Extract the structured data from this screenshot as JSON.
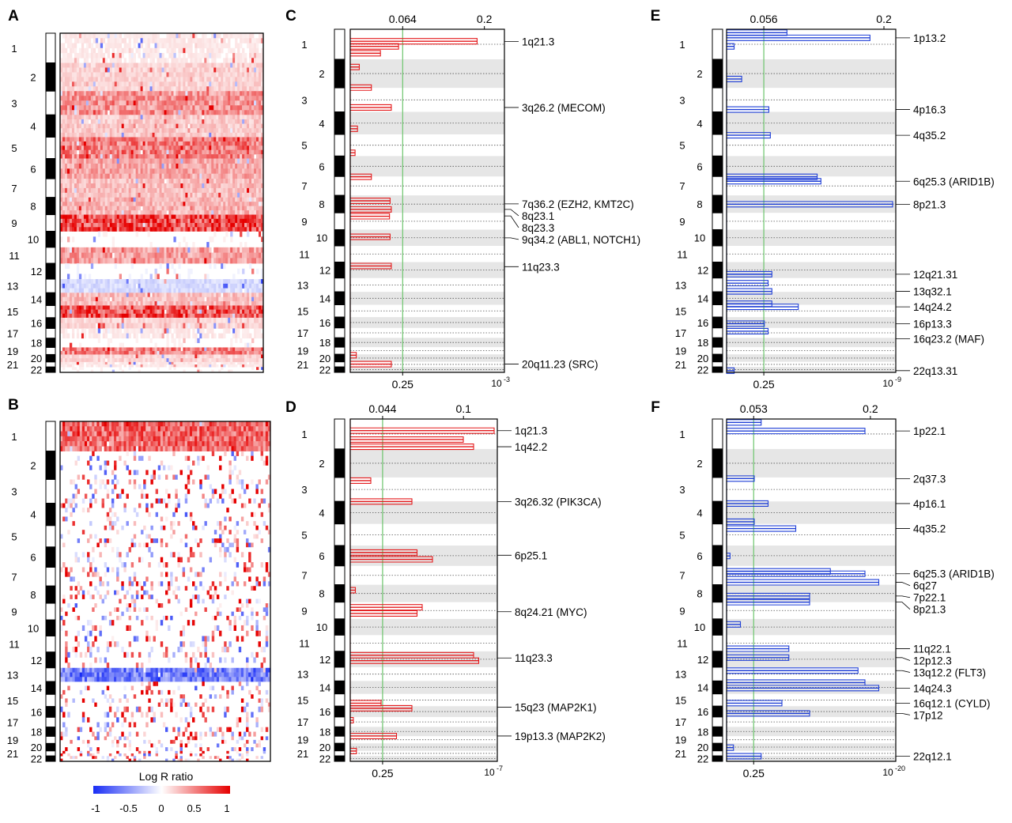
{
  "figure": {
    "chromosomes": [
      "1",
      "2",
      "3",
      "4",
      "5",
      "6",
      "7",
      "8",
      "9",
      "10",
      "11",
      "12",
      "13",
      "14",
      "15",
      "16",
      "17",
      "18",
      "19",
      "20",
      "21",
      "22"
    ],
    "colors": {
      "gain": "#e41a1c",
      "loss": "#1f3fd6",
      "threshold": "#6cc46c",
      "band": "#e6e6e6",
      "ink": "#000000"
    }
  },
  "chart_data": [
    {
      "panel": "A",
      "type": "heatmap",
      "description_label": "A",
      "rows": "chromosome position",
      "columns": "samples",
      "color_scale": {
        "min": -1,
        "max": 1
      },
      "bands": [
        {
          "chrom": "1",
          "level": 0.1
        },
        {
          "chrom": "2",
          "level": 0.2
        },
        {
          "chrom": "3",
          "level": 0.5
        },
        {
          "chrom": "4",
          "level": 0.25
        },
        {
          "chrom": "5",
          "level": 0.6
        },
        {
          "chrom": "6",
          "level": 0.4
        },
        {
          "chrom": "7",
          "level": 0.3
        },
        {
          "chrom": "8",
          "level": 0.35
        },
        {
          "chrom": "9",
          "level": 0.85
        },
        {
          "chrom": "10",
          "level": 0.05
        },
        {
          "chrom": "11",
          "level": 0.45
        },
        {
          "chrom": "12",
          "level": -0.05
        },
        {
          "chrom": "13",
          "level": -0.2
        },
        {
          "chrom": "14",
          "level": 0.3
        },
        {
          "chrom": "15",
          "level": 0.8
        },
        {
          "chrom": "16",
          "level": 0.2
        },
        {
          "chrom": "17",
          "level": 0.1
        },
        {
          "chrom": "18",
          "level": 0.05
        },
        {
          "chrom": "19",
          "level": 0.6
        },
        {
          "chrom": "20",
          "level": 0.2
        },
        {
          "chrom": "21",
          "level": 0.1
        },
        {
          "chrom": "22",
          "level": 0.05
        }
      ]
    },
    {
      "panel": "B",
      "type": "heatmap",
      "description_label": "B",
      "rows": "chromosome position",
      "columns": "samples",
      "color_scale": {
        "min": -1,
        "max": 1
      },
      "legend_title": "Log R ratio",
      "legend_ticks": [
        "-1",
        "-0.5",
        "0",
        "0.5",
        "1"
      ],
      "bands": [
        {
          "chrom": "1",
          "level": 0.7
        },
        {
          "chrom": "2",
          "level": 0.05
        },
        {
          "chrom": "3",
          "level": 0.05
        },
        {
          "chrom": "4",
          "level": 0.05
        },
        {
          "chrom": "5",
          "level": 0.05
        },
        {
          "chrom": "6",
          "level": 0.1
        },
        {
          "chrom": "7",
          "level": 0.05
        },
        {
          "chrom": "8",
          "level": 0.15
        },
        {
          "chrom": "9",
          "level": 0.05
        },
        {
          "chrom": "10",
          "level": 0.05
        },
        {
          "chrom": "11",
          "level": 0.1
        },
        {
          "chrom": "12",
          "level": 0.0
        },
        {
          "chrom": "13",
          "level": -0.7
        },
        {
          "chrom": "14",
          "level": 0.05
        },
        {
          "chrom": "15",
          "level": 0.15
        },
        {
          "chrom": "16",
          "level": 0.05
        },
        {
          "chrom": "17",
          "level": 0.05
        },
        {
          "chrom": "18",
          "level": 0.05
        },
        {
          "chrom": "19",
          "level": 0.05
        },
        {
          "chrom": "20",
          "level": 0.05
        },
        {
          "chrom": "21",
          "level": 0.05
        },
        {
          "chrom": "22",
          "level": 0.05
        }
      ]
    },
    {
      "panel": "C",
      "type": "line",
      "description_label": "C",
      "color": "gain",
      "top_ticks": [
        "0.064",
        "0.2"
      ],
      "bottom_ticks": [
        "0.25"
      ],
      "bottom_exponent": {
        "base": "10",
        "exp": "-3"
      },
      "threshold": 0.064,
      "xmax": 0.25,
      "annotations": [
        {
          "label": "1q21.3",
          "pos": 0.0357
        },
        {
          "label": "3q26.2 (MECOM)",
          "pos": 0.228
        },
        {
          "label": "7q36.2 (EZH2, KMT2C)",
          "pos": 0.509
        },
        {
          "label": "8q23.1",
          "pos": 0.525
        },
        {
          "label": "8q23.3",
          "pos": 0.544
        },
        {
          "label": "9q34.2 (ABL1, NOTCH1)",
          "pos": 0.608
        },
        {
          "label": "11q23.3",
          "pos": 0.692
        },
        {
          "label": "20q11.23 (SRC)",
          "pos": 0.976
        }
      ],
      "peaks": [
        {
          "pos": 0.035,
          "v": 0.21
        },
        {
          "pos": 0.05,
          "v": 0.08
        },
        {
          "pos": 0.07,
          "v": 0.05
        },
        {
          "pos": 0.11,
          "v": 0.015
        },
        {
          "pos": 0.17,
          "v": 0.035
        },
        {
          "pos": 0.228,
          "v": 0.068
        },
        {
          "pos": 0.29,
          "v": 0.012
        },
        {
          "pos": 0.36,
          "v": 0.008
        },
        {
          "pos": 0.43,
          "v": 0.035
        },
        {
          "pos": 0.5,
          "v": 0.066
        },
        {
          "pos": 0.525,
          "v": 0.068
        },
        {
          "pos": 0.545,
          "v": 0.065
        },
        {
          "pos": 0.605,
          "v": 0.066
        },
        {
          "pos": 0.69,
          "v": 0.068
        },
        {
          "pos": 0.95,
          "v": 0.01
        },
        {
          "pos": 0.976,
          "v": 0.068
        }
      ]
    },
    {
      "panel": "D",
      "type": "line",
      "description_label": "D",
      "color": "gain",
      "top_ticks": [
        "0.044",
        "0.1"
      ],
      "bottom_ticks": [
        "0.25"
      ],
      "bottom_exponent": {
        "base": "10",
        "exp": "-7"
      },
      "threshold": 0.044,
      "xmax": 0.14,
      "annotations": [
        {
          "label": "1q21.3",
          "pos": 0.034
        },
        {
          "label": "1q42.2",
          "pos": 0.081
        },
        {
          "label": "3q26.32 (PIK3CA)",
          "pos": 0.241
        },
        {
          "label": "6p25.1",
          "pos": 0.398
        },
        {
          "label": "8q24.21 (MYC)",
          "pos": 0.563
        },
        {
          "label": "11q23.3",
          "pos": 0.698
        },
        {
          "label": "15q23 (MAP2K1)",
          "pos": 0.842
        },
        {
          "label": "19p13.3 (MAP2K2)",
          "pos": 0.926
        }
      ],
      "peaks": [
        {
          "pos": 0.034,
          "v": 0.14
        },
        {
          "pos": 0.06,
          "v": 0.11
        },
        {
          "pos": 0.081,
          "v": 0.12
        },
        {
          "pos": 0.18,
          "v": 0.02
        },
        {
          "pos": 0.241,
          "v": 0.06
        },
        {
          "pos": 0.39,
          "v": 0.065
        },
        {
          "pos": 0.41,
          "v": 0.08
        },
        {
          "pos": 0.5,
          "v": 0.005
        },
        {
          "pos": 0.55,
          "v": 0.07
        },
        {
          "pos": 0.568,
          "v": 0.065
        },
        {
          "pos": 0.69,
          "v": 0.12
        },
        {
          "pos": 0.706,
          "v": 0.125
        },
        {
          "pos": 0.83,
          "v": 0.03
        },
        {
          "pos": 0.845,
          "v": 0.06
        },
        {
          "pos": 0.88,
          "v": 0.003
        },
        {
          "pos": 0.926,
          "v": 0.045
        },
        {
          "pos": 0.97,
          "v": 0.006
        }
      ]
    },
    {
      "panel": "E",
      "type": "line",
      "description_label": "E",
      "color": "loss",
      "top_ticks": [
        "0.056",
        "0.2"
      ],
      "bottom_ticks": [
        "0.25"
      ],
      "bottom_exponent": {
        "base": "10",
        "exp": "-9"
      },
      "threshold": 0.056,
      "xmax": 0.22,
      "annotations": [
        {
          "label": "1p13.2",
          "pos": 0.025
        },
        {
          "label": "4p16.3",
          "pos": 0.234
        },
        {
          "label": "4q35.2",
          "pos": 0.309
        },
        {
          "label": "6q25.3 (ARID1B)",
          "pos": 0.443
        },
        {
          "label": "8p21.3",
          "pos": 0.51
        },
        {
          "label": "12q21.31",
          "pos": 0.714
        },
        {
          "label": "13q32.1",
          "pos": 0.764
        },
        {
          "label": "14q24.2",
          "pos": 0.809
        },
        {
          "label": "16p13.3",
          "pos": 0.858
        },
        {
          "label": "16q23.2 (MAF)",
          "pos": 0.902
        },
        {
          "label": "22q13.31",
          "pos": 0.995
        }
      ],
      "peaks": [
        {
          "pos": 0.01,
          "v": 0.08
        },
        {
          "pos": 0.025,
          "v": 0.19
        },
        {
          "pos": 0.05,
          "v": 0.01
        },
        {
          "pos": 0.145,
          "v": 0.02
        },
        {
          "pos": 0.234,
          "v": 0.056
        },
        {
          "pos": 0.309,
          "v": 0.058
        },
        {
          "pos": 0.43,
          "v": 0.12
        },
        {
          "pos": 0.443,
          "v": 0.125
        },
        {
          "pos": 0.51,
          "v": 0.22
        },
        {
          "pos": 0.714,
          "v": 0.06
        },
        {
          "pos": 0.74,
          "v": 0.055
        },
        {
          "pos": 0.764,
          "v": 0.06
        },
        {
          "pos": 0.8,
          "v": 0.06
        },
        {
          "pos": 0.809,
          "v": 0.095
        },
        {
          "pos": 0.858,
          "v": 0.05
        },
        {
          "pos": 0.88,
          "v": 0.055
        },
        {
          "pos": 0.995,
          "v": 0.01
        }
      ]
    },
    {
      "panel": "F",
      "type": "line",
      "description_label": "F",
      "color": "loss",
      "top_ticks": [
        "0.053",
        "0.2"
      ],
      "bottom_ticks": [
        "0.25"
      ],
      "bottom_exponent": {
        "base": "10",
        "exp": "-20"
      },
      "threshold": 0.053,
      "xmax": 0.24,
      "annotations": [
        {
          "label": "1p22.1",
          "pos": 0.035
        },
        {
          "label": "2q37.3",
          "pos": 0.174
        },
        {
          "label": "4p16.1",
          "pos": 0.247
        },
        {
          "label": "4q35.2",
          "pos": 0.32
        },
        {
          "label": "6q25.3 (ARID1B)",
          "pos": 0.452
        },
        {
          "label": "6q27",
          "pos": 0.477
        },
        {
          "label": "7p22.1",
          "pos": 0.517
        },
        {
          "label": "8p21.3",
          "pos": 0.535
        },
        {
          "label": "11q22.1",
          "pos": 0.671
        },
        {
          "label": "12p12.3",
          "pos": 0.697
        },
        {
          "label": "13q12.2 (FLT3)",
          "pos": 0.735
        },
        {
          "label": "14q24.3",
          "pos": 0.786
        },
        {
          "label": "16q12.1 (CYLD)",
          "pos": 0.83
        },
        {
          "label": "17p12",
          "pos": 0.86
        },
        {
          "label": "22q12.1",
          "pos": 0.985
        }
      ],
      "peaks": [
        {
          "pos": 0.01,
          "v": 0.05
        },
        {
          "pos": 0.035,
          "v": 0.2
        },
        {
          "pos": 0.174,
          "v": 0.04
        },
        {
          "pos": 0.247,
          "v": 0.06
        },
        {
          "pos": 0.3,
          "v": 0.04
        },
        {
          "pos": 0.32,
          "v": 0.1
        },
        {
          "pos": 0.4,
          "v": 0.005
        },
        {
          "pos": 0.445,
          "v": 0.15
        },
        {
          "pos": 0.452,
          "v": 0.2
        },
        {
          "pos": 0.477,
          "v": 0.22
        },
        {
          "pos": 0.517,
          "v": 0.12
        },
        {
          "pos": 0.535,
          "v": 0.12
        },
        {
          "pos": 0.6,
          "v": 0.02
        },
        {
          "pos": 0.671,
          "v": 0.09
        },
        {
          "pos": 0.697,
          "v": 0.09
        },
        {
          "pos": 0.735,
          "v": 0.19
        },
        {
          "pos": 0.77,
          "v": 0.2
        },
        {
          "pos": 0.786,
          "v": 0.22
        },
        {
          "pos": 0.83,
          "v": 0.08
        },
        {
          "pos": 0.86,
          "v": 0.12
        },
        {
          "pos": 0.96,
          "v": 0.01
        },
        {
          "pos": 0.985,
          "v": 0.05
        }
      ]
    }
  ]
}
